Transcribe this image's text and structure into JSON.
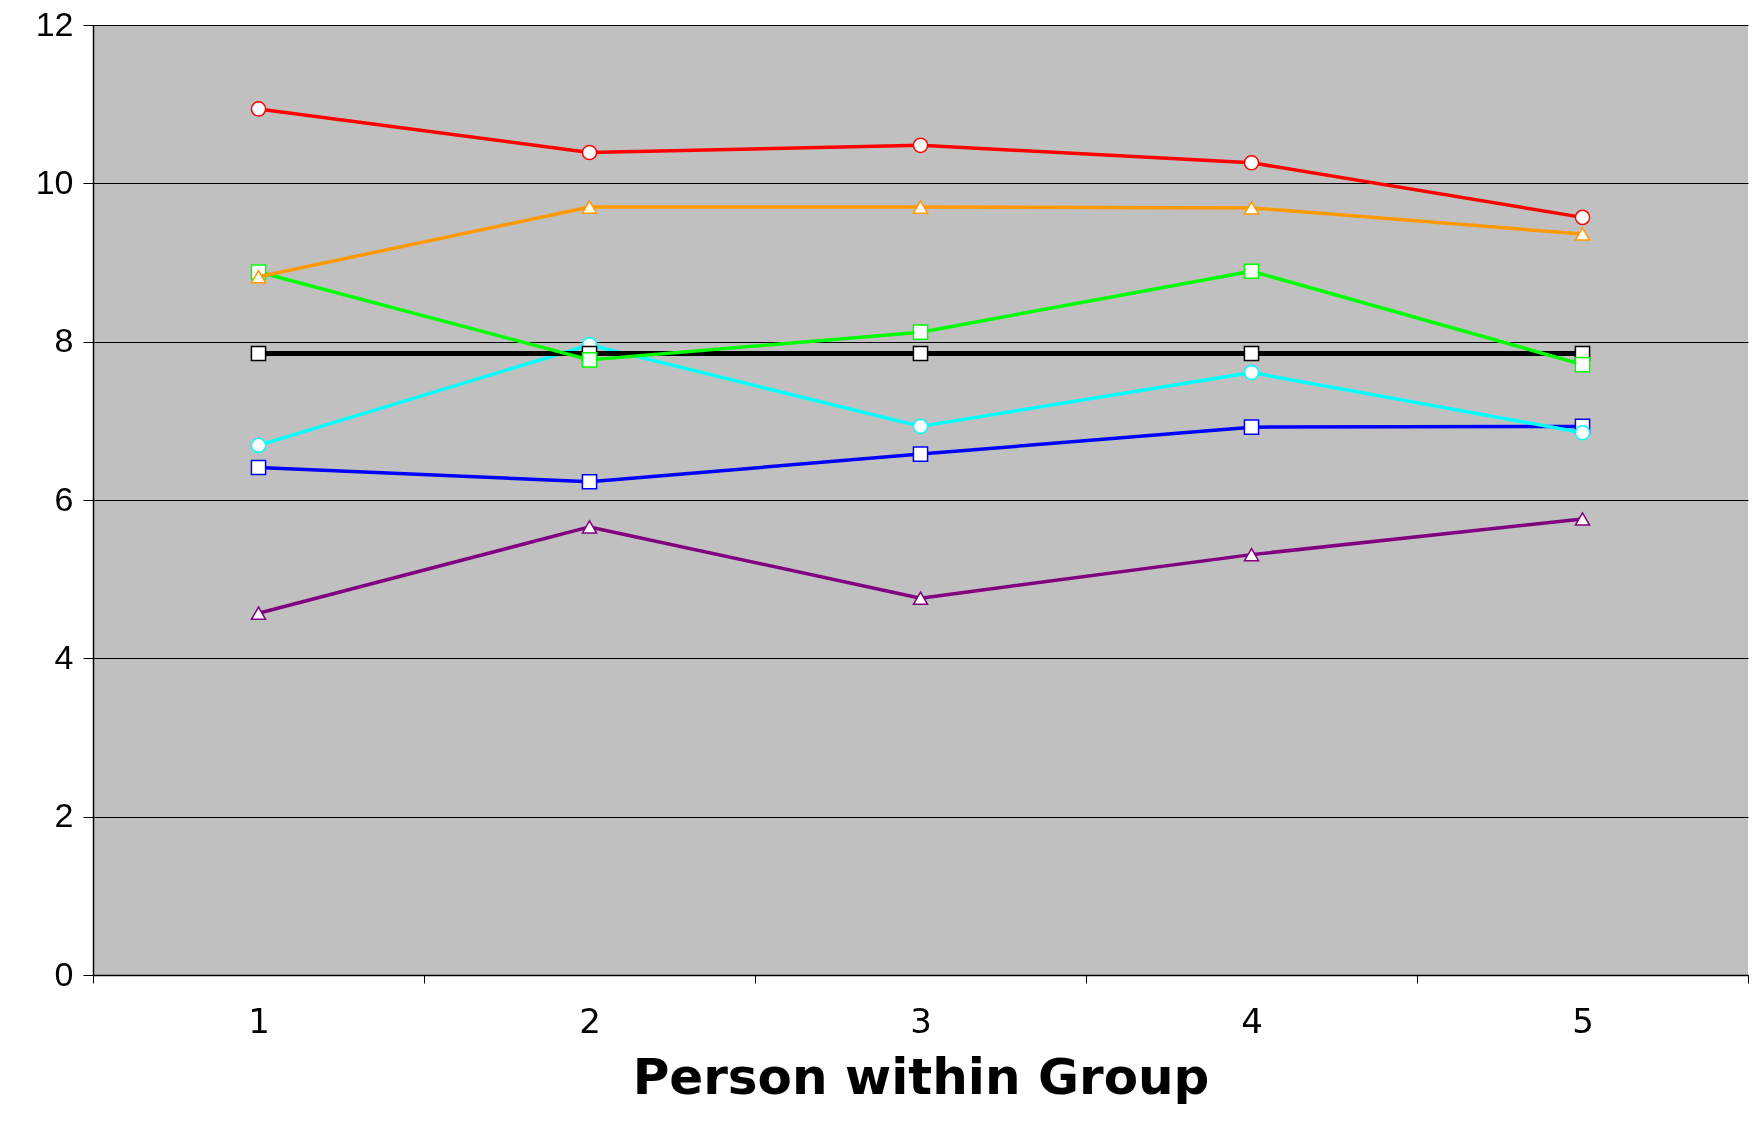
{
  "chart_data": {
    "type": "line",
    "xlabel": "Person within Group",
    "categories": [
      "1",
      "2",
      "3",
      "4",
      "5"
    ],
    "ylim": [
      0,
      12
    ],
    "yticks": [
      0,
      2,
      4,
      6,
      8,
      10,
      12
    ],
    "grid": "y",
    "series": [
      {
        "color": "#ff0000",
        "marker": "circle",
        "values": [
          10.94,
          10.39,
          10.48,
          10.26,
          9.57
        ]
      },
      {
        "color": "#ff9900",
        "marker": "triangle",
        "values": [
          8.82,
          9.7,
          9.7,
          9.69,
          9.36
        ]
      },
      {
        "color": "#00ff00",
        "marker": "square",
        "values": [
          8.88,
          7.77,
          8.12,
          8.89,
          7.71
        ]
      },
      {
        "color": "#000000",
        "marker": "square",
        "values": [
          7.85,
          7.85,
          7.85,
          7.85,
          7.85
        ]
      },
      {
        "color": "#00ffff",
        "marker": "circle",
        "values": [
          6.69,
          7.96,
          6.93,
          7.61,
          6.85
        ]
      },
      {
        "color": "#0000ff",
        "marker": "square",
        "values": [
          6.41,
          6.23,
          6.58,
          6.92,
          6.93
        ]
      },
      {
        "color": "#800080",
        "marker": "triangle",
        "values": [
          4.57,
          5.66,
          4.76,
          5.31,
          5.76
        ]
      }
    ]
  }
}
